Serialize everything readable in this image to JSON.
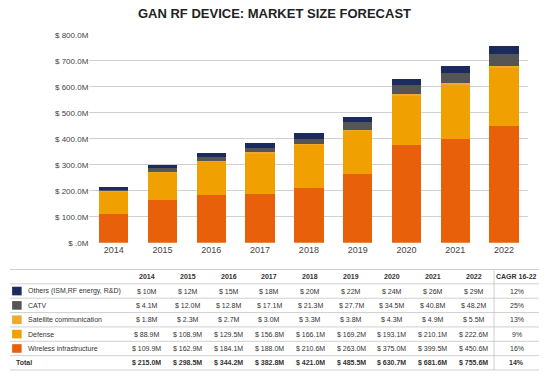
{
  "chart_data": {
    "type": "bar",
    "title": "GAN RF DEVICE: MARKET SIZE FORECAST",
    "categories": [
      "2014",
      "2015",
      "2016",
      "2017",
      "2018",
      "2019",
      "2020",
      "2021",
      "2022"
    ],
    "series": [
      {
        "name": "Wireless infrastructure",
        "color": "#E8610A",
        "values": [
          109.9,
          162.9,
          184.1,
          188.0,
          210.6,
          263.0,
          375.0,
          399.5,
          450.6
        ]
      },
      {
        "name": "Defense",
        "color": "#F0A000",
        "values": [
          88.9,
          108.9,
          129.5,
          156.8,
          166.1,
          169.2,
          193.1,
          210.1,
          222.6
        ]
      },
      {
        "name": "Satellite communication",
        "color": "#F0A830",
        "values": [
          1.8,
          2.3,
          2.7,
          3.0,
          3.3,
          3.8,
          4.3,
          4.9,
          5.5
        ]
      },
      {
        "name": "CATV",
        "color": "#555555",
        "values": [
          4.1,
          12.0,
          12.8,
          17.1,
          21.3,
          27.7,
          34.5,
          40.8,
          48.2
        ]
      },
      {
        "name": "Others (ISM,RF energy, R&D)",
        "color": "#1C2B5E",
        "values": [
          10.0,
          12.0,
          15.0,
          18.0,
          20.0,
          22.0,
          24.0,
          26.0,
          29.0
        ]
      }
    ],
    "stacked": true,
    "ylim": [
      0,
      800
    ],
    "yticks": [
      {
        "value": 0,
        "label": "$ .0M"
      },
      {
        "value": 100,
        "label": "$ 100.0M"
      },
      {
        "value": 200,
        "label": "$ 200.0M"
      },
      {
        "value": 300,
        "label": "$ 300.0M"
      },
      {
        "value": 400,
        "label": "$ 400.0M"
      },
      {
        "value": 500,
        "label": "$ 500.0M"
      },
      {
        "value": 600,
        "label": "$ 600.0M"
      },
      {
        "value": 700,
        "label": "$ 700.0M"
      },
      {
        "value": 800,
        "label": "$ 800.0M"
      }
    ],
    "grid": true,
    "table": {
      "columns": [
        "2014",
        "2015",
        "2016",
        "2017",
        "2018",
        "2019",
        "2020",
        "2021",
        "2022",
        "CAGR 16-22"
      ],
      "rows": [
        [
          "Others (ISM,RF energy, R&D)",
          "$ 10M",
          "$ 12M",
          "$ 15M",
          "$ 18M",
          "$ 20M",
          "$ 22M",
          "$ 24M",
          "$ 26M",
          "$ 29M",
          "12%"
        ],
        [
          "CATV",
          "$ 4.1M",
          "$ 12.0M",
          "$ 12.8M",
          "$ 17.1M",
          "$ 21.3M",
          "$ 27.7M",
          "$ 34.5M",
          "$ 40.8M",
          "$ 48.2M",
          "25%"
        ],
        [
          "Satellite communication",
          "$ 1.8M",
          "$ 2.3M",
          "$ 2.7M",
          "$ 3.0M",
          "$ 3.3M",
          "$ 3.8M",
          "$ 4.3M",
          "$ 4.9M",
          "$ 5.5M",
          "13%"
        ],
        [
          "Defense",
          "$ 88.9M",
          "$ 108.9M",
          "$ 129.5M",
          "$ 156.8M",
          "$ 166.1M",
          "$ 169.2M",
          "$ 193.1M",
          "$ 210.1M",
          "$ 222.6M",
          "9%"
        ],
        [
          "Wireless infrastructure",
          "$ 109.9M",
          "$ 162.9M",
          "$ 184.1M",
          "$ 188.0M",
          "$ 210.6M",
          "$ 263.0M",
          "$ 375.0M",
          "$ 399.5M",
          "$ 450.6M",
          "16%"
        ],
        [
          "Total",
          "$ 215.0M",
          "$ 298.5M",
          "$ 344.2M",
          "$ 382.8M",
          "$ 421.0M",
          "$ 485.5M",
          "$ 630.7M",
          "$ 681.6M",
          "$ 755.6M",
          "14%"
        ]
      ]
    }
  }
}
